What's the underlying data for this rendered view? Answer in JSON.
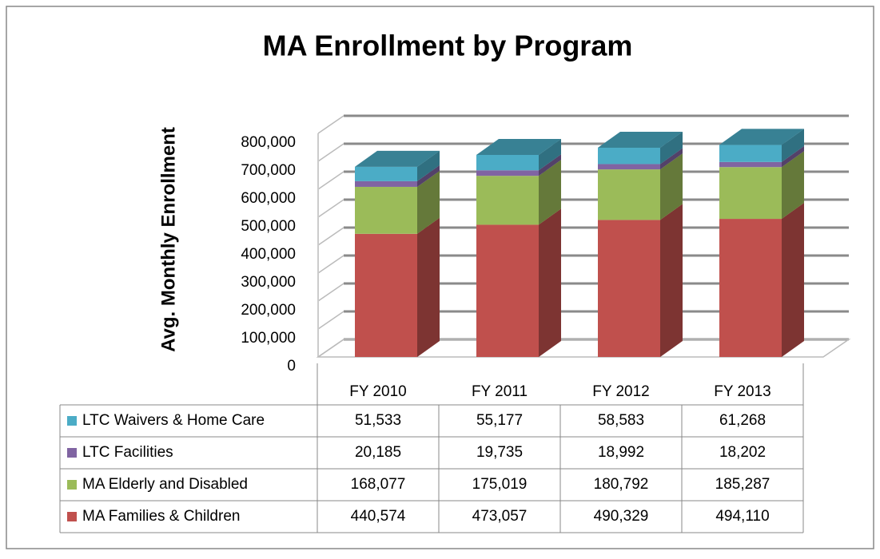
{
  "chart_data": {
    "type": "bar3d_stacked",
    "title": "MA Enrollment by Program",
    "ylabel": "Avg. Monthly Enrollment",
    "categories": [
      "FY 2010",
      "FY 2011",
      "FY 2012",
      "FY 2013"
    ],
    "series": [
      {
        "name": "MA Families & Children",
        "color": "#c0504d",
        "values": [
          440574,
          473057,
          490329,
          494110
        ],
        "value_labels": [
          "440,574",
          "473,057",
          "490,329",
          "494,110"
        ]
      },
      {
        "name": "MA Elderly and Disabled",
        "color": "#9bbb59",
        "values": [
          168077,
          175019,
          180792,
          185287
        ],
        "value_labels": [
          "168,077",
          "175,019",
          "180,792",
          "185,287"
        ]
      },
      {
        "name": "LTC Facilities",
        "color": "#8064a2",
        "values": [
          20185,
          19735,
          18992,
          18202
        ],
        "value_labels": [
          "20,185",
          "19,735",
          "18,992",
          "18,202"
        ]
      },
      {
        "name": "LTC Waivers & Home Care",
        "color": "#4bacc6",
        "values": [
          51533,
          55177,
          58583,
          61268
        ],
        "value_labels": [
          "51,533",
          "55,177",
          "58,583",
          "61,268"
        ]
      }
    ],
    "ylim": [
      0,
      800000
    ],
    "yticks": [
      0,
      {
        "value": 100000,
        "label": "100,000"
      },
      {
        "value": 200000,
        "label": "200,000"
      },
      {
        "value": 300000,
        "label": "300,000"
      },
      {
        "value": 400000,
        "label": "400,000"
      },
      {
        "value": 500000,
        "label": "500,000"
      },
      {
        "value": 600000,
        "label": "600,000"
      },
      {
        "value": 700000,
        "label": "700,000"
      },
      {
        "value": 800000,
        "label": "800,000"
      }
    ],
    "grid": true
  }
}
